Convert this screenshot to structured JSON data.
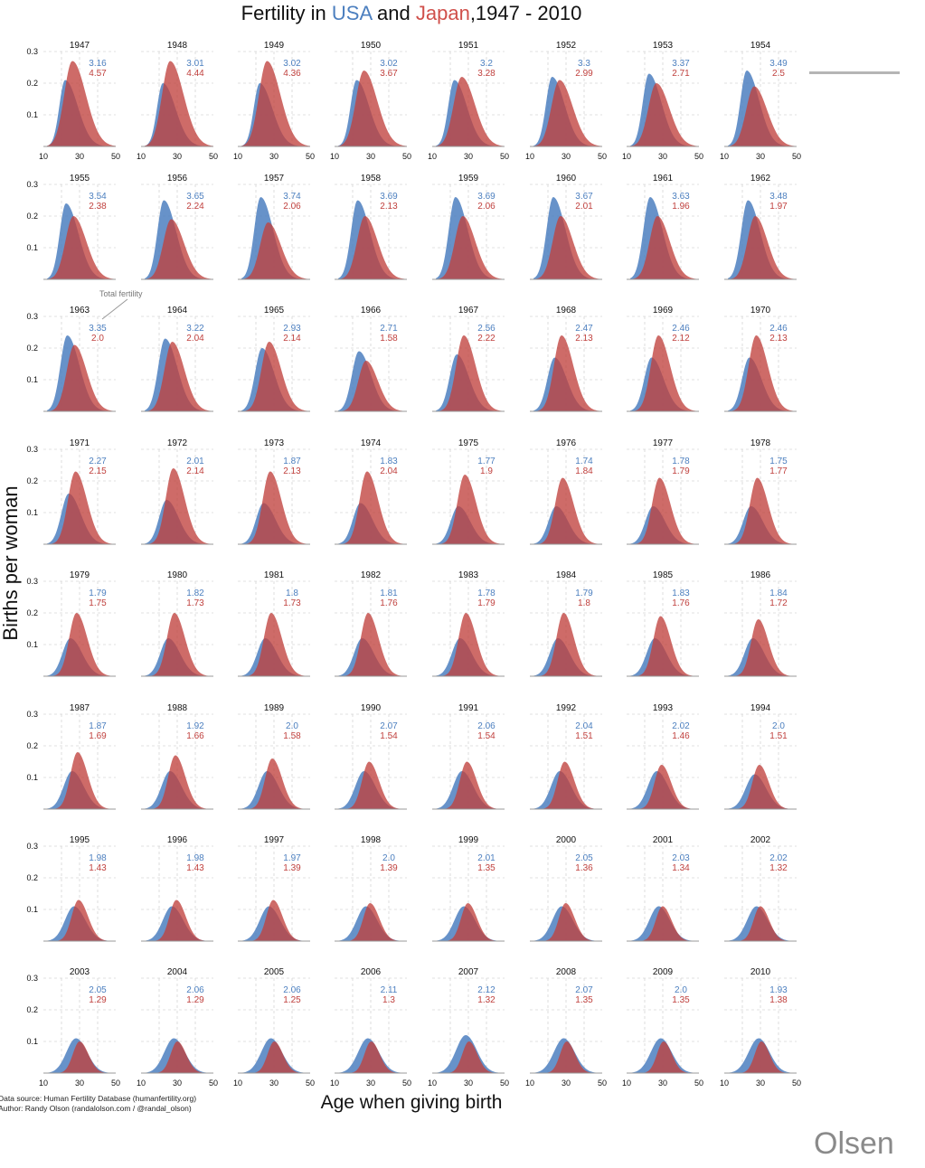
{
  "title": {
    "prefix": "Fertility in ",
    "usa": "USA",
    "and": " and ",
    "japan": "Japan",
    "suffix": ",1947 - 2010"
  },
  "colors": {
    "usa": "#4c7fbf",
    "japan": "#c0413e"
  },
  "annotation": "Total fertility",
  "source_line1": "Data source: Human Fertility Database (humanfertility.org)",
  "source_line2": "Author: Randy Olson (randalolson.com / @randal_olson)",
  "watermark": "Olsen",
  "chart_data": {
    "type": "area",
    "title": "Fertility in USA and Japan,1947 - 2010",
    "xlabel": "Age when giving birth",
    "ylabel": "Births per woman",
    "xlim": [
      10,
      50
    ],
    "ylim": [
      0,
      0.3
    ],
    "x_ticks": [
      10,
      30,
      50
    ],
    "y_ticks": [
      0.1,
      0.2,
      0.3
    ],
    "grid": true,
    "series_names": [
      "USA",
      "Japan"
    ],
    "panels": [
      {
        "year": "1947",
        "usa": "3.16",
        "japan": "4.57",
        "usa_peak": 0.21,
        "japan_peak": 0.27
      },
      {
        "year": "1948",
        "usa": "3.01",
        "japan": "4.44",
        "usa_peak": 0.2,
        "japan_peak": 0.27
      },
      {
        "year": "1949",
        "usa": "3.02",
        "japan": "4.36",
        "usa_peak": 0.2,
        "japan_peak": 0.27
      },
      {
        "year": "1950",
        "usa": "3.02",
        "japan": "3.67",
        "usa_peak": 0.21,
        "japan_peak": 0.24
      },
      {
        "year": "1951",
        "usa": "3.2",
        "japan": "3.28",
        "usa_peak": 0.21,
        "japan_peak": 0.22
      },
      {
        "year": "1952",
        "usa": "3.3",
        "japan": "2.99",
        "usa_peak": 0.22,
        "japan_peak": 0.21
      },
      {
        "year": "1953",
        "usa": "3.37",
        "japan": "2.71",
        "usa_peak": 0.23,
        "japan_peak": 0.2
      },
      {
        "year": "1954",
        "usa": "3.49",
        "japan": "2.5",
        "usa_peak": 0.24,
        "japan_peak": 0.19
      },
      {
        "year": "1955",
        "usa": "3.54",
        "japan": "2.38",
        "usa_peak": 0.24,
        "japan_peak": 0.2
      },
      {
        "year": "1956",
        "usa": "3.65",
        "japan": "2.24",
        "usa_peak": 0.25,
        "japan_peak": 0.19
      },
      {
        "year": "1957",
        "usa": "3.74",
        "japan": "2.06",
        "usa_peak": 0.26,
        "japan_peak": 0.18
      },
      {
        "year": "1958",
        "usa": "3.69",
        "japan": "2.13",
        "usa_peak": 0.25,
        "japan_peak": 0.2
      },
      {
        "year": "1959",
        "usa": "3.69",
        "japan": "2.06",
        "usa_peak": 0.26,
        "japan_peak": 0.2
      },
      {
        "year": "1960",
        "usa": "3.67",
        "japan": "2.01",
        "usa_peak": 0.26,
        "japan_peak": 0.2
      },
      {
        "year": "1961",
        "usa": "3.63",
        "japan": "1.96",
        "usa_peak": 0.26,
        "japan_peak": 0.2
      },
      {
        "year": "1962",
        "usa": "3.48",
        "japan": "1.97",
        "usa_peak": 0.25,
        "japan_peak": 0.2
      },
      {
        "year": "1963",
        "usa": "3.35",
        "japan": "2.0",
        "usa_peak": 0.24,
        "japan_peak": 0.21
      },
      {
        "year": "1964",
        "usa": "3.22",
        "japan": "2.04",
        "usa_peak": 0.23,
        "japan_peak": 0.22
      },
      {
        "year": "1965",
        "usa": "2.93",
        "japan": "2.14",
        "usa_peak": 0.2,
        "japan_peak": 0.22
      },
      {
        "year": "1966",
        "usa": "2.71",
        "japan": "1.58",
        "usa_peak": 0.19,
        "japan_peak": 0.16
      },
      {
        "year": "1967",
        "usa": "2.56",
        "japan": "2.22",
        "usa_peak": 0.18,
        "japan_peak": 0.24
      },
      {
        "year": "1968",
        "usa": "2.47",
        "japan": "2.13",
        "usa_peak": 0.17,
        "japan_peak": 0.24
      },
      {
        "year": "1969",
        "usa": "2.46",
        "japan": "2.12",
        "usa_peak": 0.17,
        "japan_peak": 0.24
      },
      {
        "year": "1970",
        "usa": "2.46",
        "japan": "2.13",
        "usa_peak": 0.17,
        "japan_peak": 0.24
      },
      {
        "year": "1971",
        "usa": "2.27",
        "japan": "2.15",
        "usa_peak": 0.16,
        "japan_peak": 0.23
      },
      {
        "year": "1972",
        "usa": "2.01",
        "japan": "2.14",
        "usa_peak": 0.14,
        "japan_peak": 0.24
      },
      {
        "year": "1973",
        "usa": "1.87",
        "japan": "2.13",
        "usa_peak": 0.13,
        "japan_peak": 0.23
      },
      {
        "year": "1974",
        "usa": "1.83",
        "japan": "2.04",
        "usa_peak": 0.13,
        "japan_peak": 0.23
      },
      {
        "year": "1975",
        "usa": "1.77",
        "japan": "1.9",
        "usa_peak": 0.12,
        "japan_peak": 0.22
      },
      {
        "year": "1976",
        "usa": "1.74",
        "japan": "1.84",
        "usa_peak": 0.12,
        "japan_peak": 0.21
      },
      {
        "year": "1977",
        "usa": "1.78",
        "japan": "1.79",
        "usa_peak": 0.12,
        "japan_peak": 0.21
      },
      {
        "year": "1978",
        "usa": "1.75",
        "japan": "1.77",
        "usa_peak": 0.12,
        "japan_peak": 0.21
      },
      {
        "year": "1979",
        "usa": "1.79",
        "japan": "1.75",
        "usa_peak": 0.12,
        "japan_peak": 0.2
      },
      {
        "year": "1980",
        "usa": "1.82",
        "japan": "1.73",
        "usa_peak": 0.12,
        "japan_peak": 0.2
      },
      {
        "year": "1981",
        "usa": "1.8",
        "japan": "1.73",
        "usa_peak": 0.12,
        "japan_peak": 0.2
      },
      {
        "year": "1982",
        "usa": "1.81",
        "japan": "1.76",
        "usa_peak": 0.12,
        "japan_peak": 0.2
      },
      {
        "year": "1983",
        "usa": "1.78",
        "japan": "1.79",
        "usa_peak": 0.12,
        "japan_peak": 0.2
      },
      {
        "year": "1984",
        "usa": "1.79",
        "japan": "1.8",
        "usa_peak": 0.12,
        "japan_peak": 0.2
      },
      {
        "year": "1985",
        "usa": "1.83",
        "japan": "1.76",
        "usa_peak": 0.12,
        "japan_peak": 0.19
      },
      {
        "year": "1986",
        "usa": "1.84",
        "japan": "1.72",
        "usa_peak": 0.12,
        "japan_peak": 0.18
      },
      {
        "year": "1987",
        "usa": "1.87",
        "japan": "1.69",
        "usa_peak": 0.12,
        "japan_peak": 0.18
      },
      {
        "year": "1988",
        "usa": "1.92",
        "japan": "1.66",
        "usa_peak": 0.12,
        "japan_peak": 0.17
      },
      {
        "year": "1989",
        "usa": "2.0",
        "japan": "1.58",
        "usa_peak": 0.12,
        "japan_peak": 0.16
      },
      {
        "year": "1990",
        "usa": "2.07",
        "japan": "1.54",
        "usa_peak": 0.12,
        "japan_peak": 0.15
      },
      {
        "year": "1991",
        "usa": "2.06",
        "japan": "1.54",
        "usa_peak": 0.12,
        "japan_peak": 0.15
      },
      {
        "year": "1992",
        "usa": "2.04",
        "japan": "1.51",
        "usa_peak": 0.12,
        "japan_peak": 0.15
      },
      {
        "year": "1993",
        "usa": "2.02",
        "japan": "1.46",
        "usa_peak": 0.12,
        "japan_peak": 0.14
      },
      {
        "year": "1994",
        "usa": "2.0",
        "japan": "1.51",
        "usa_peak": 0.11,
        "japan_peak": 0.14
      },
      {
        "year": "1995",
        "usa": "1.98",
        "japan": "1.43",
        "usa_peak": 0.11,
        "japan_peak": 0.13
      },
      {
        "year": "1996",
        "usa": "1.98",
        "japan": "1.43",
        "usa_peak": 0.11,
        "japan_peak": 0.13
      },
      {
        "year": "1997",
        "usa": "1.97",
        "japan": "1.39",
        "usa_peak": 0.11,
        "japan_peak": 0.13
      },
      {
        "year": "1998",
        "usa": "2.0",
        "japan": "1.39",
        "usa_peak": 0.11,
        "japan_peak": 0.12
      },
      {
        "year": "1999",
        "usa": "2.01",
        "japan": "1.35",
        "usa_peak": 0.11,
        "japan_peak": 0.12
      },
      {
        "year": "2000",
        "usa": "2.05",
        "japan": "1.36",
        "usa_peak": 0.11,
        "japan_peak": 0.12
      },
      {
        "year": "2001",
        "usa": "2.03",
        "japan": "1.34",
        "usa_peak": 0.11,
        "japan_peak": 0.11
      },
      {
        "year": "2002",
        "usa": "2.02",
        "japan": "1.32",
        "usa_peak": 0.11,
        "japan_peak": 0.11
      },
      {
        "year": "2003",
        "usa": "2.05",
        "japan": "1.29",
        "usa_peak": 0.11,
        "japan_peak": 0.1
      },
      {
        "year": "2004",
        "usa": "2.06",
        "japan": "1.29",
        "usa_peak": 0.11,
        "japan_peak": 0.1
      },
      {
        "year": "2005",
        "usa": "2.06",
        "japan": "1.25",
        "usa_peak": 0.11,
        "japan_peak": 0.1
      },
      {
        "year": "2006",
        "usa": "2.11",
        "japan": "1.3",
        "usa_peak": 0.11,
        "japan_peak": 0.1
      },
      {
        "year": "2007",
        "usa": "2.12",
        "japan": "1.32",
        "usa_peak": 0.12,
        "japan_peak": 0.1
      },
      {
        "year": "2008",
        "usa": "2.07",
        "japan": "1.35",
        "usa_peak": 0.11,
        "japan_peak": 0.1
      },
      {
        "year": "2009",
        "usa": "2.0",
        "japan": "1.35",
        "usa_peak": 0.11,
        "japan_peak": 0.1
      },
      {
        "year": "2010",
        "usa": "1.93",
        "japan": "1.38",
        "usa_peak": 0.11,
        "japan_peak": 0.1
      }
    ]
  }
}
